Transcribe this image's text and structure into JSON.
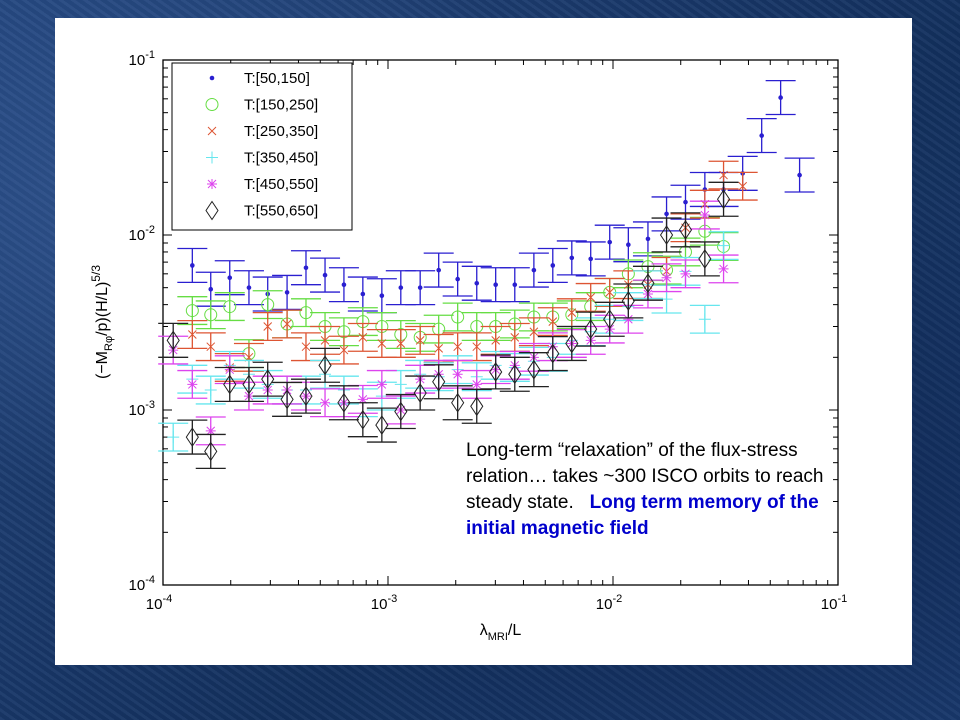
{
  "chart_data": {
    "type": "scatter",
    "xscale": "log",
    "yscale": "log",
    "xlim": [
      0.0001,
      0.1
    ],
    "ylim": [
      0.0001,
      0.1
    ],
    "xlabel": "λMRI/L",
    "xlabel_main": "λ",
    "xlabel_sub": "MRI",
    "xlabel_tail": "/L",
    "ylabel": "(−MRφ/p)(H/L)^5/3",
    "ylabel_parts": {
      "a": "(−M",
      "sub": "Rφ",
      "b": "/p)(H/L)",
      "sup": "5/3"
    },
    "x_ticks": [
      {
        "base": "10",
        "exp": "-4"
      },
      {
        "base": "10",
        "exp": "-3"
      },
      {
        "base": "10",
        "exp": "-2"
      },
      {
        "base": "10",
        "exp": "-1"
      }
    ],
    "y_ticks": [
      {
        "base": "10",
        "exp": "-4"
      },
      {
        "base": "10",
        "exp": "-3"
      },
      {
        "base": "10",
        "exp": "-2"
      },
      {
        "base": "10",
        "exp": "-1"
      }
    ],
    "legend_placement": "top-left",
    "x": [
      0.000111,
      0.000135,
      0.000163,
      0.000198,
      0.000241,
      0.000292,
      0.000356,
      0.000432,
      0.000525,
      0.000637,
      0.000773,
      0.000939,
      0.00114,
      0.00139,
      0.00168,
      0.00204,
      0.00248,
      0.00301,
      0.00366,
      0.00445,
      0.0054,
      0.00656,
      0.00796,
      0.00967,
      0.0117,
      0.0143,
      0.0173,
      0.021,
      0.0256,
      0.031,
      0.0377,
      0.0458,
      0.0556,
      0.0675
    ],
    "series": [
      {
        "name": "T:[50,150]",
        "marker": "dot",
        "color": "#2a1fd0",
        "rel_err": 0.25,
        "values": [
          null,
          0.0067,
          0.0049,
          0.0057,
          0.005,
          0.0046,
          0.0047,
          0.0065,
          0.0059,
          0.0052,
          0.0046,
          0.0045,
          0.005,
          0.005,
          0.0063,
          0.0056,
          0.0053,
          0.0052,
          0.0052,
          0.0063,
          0.0067,
          0.0074,
          0.0073,
          0.0091,
          0.0088,
          0.0095,
          0.0132,
          0.0154,
          0.0182,
          0.0182,
          0.0225,
          0.037,
          0.061,
          0.022
        ]
      },
      {
        "name": "T:[150,250]",
        "marker": "circle",
        "color": "#66dd44",
        "rel_err": 0.2,
        "values": [
          null,
          0.0037,
          0.0035,
          0.0039,
          0.0021,
          0.004,
          0.0031,
          0.0036,
          0.003,
          0.0028,
          0.0032,
          0.003,
          0.0027,
          0.0026,
          0.0029,
          0.0034,
          0.003,
          0.003,
          0.0031,
          0.0034,
          0.0034,
          0.0035,
          0.0039,
          0.0047,
          0.006,
          0.0066,
          0.0063,
          0.008,
          0.0105,
          0.0086,
          null,
          null,
          null,
          null
        ]
      },
      {
        "name": "T:[250,350]",
        "marker": "x",
        "color": "#dd5533",
        "rel_err": 0.2,
        "values": [
          null,
          0.0027,
          0.0023,
          0.00175,
          0.002,
          0.003,
          0.0031,
          0.0023,
          0.0025,
          0.0022,
          0.0026,
          0.0024,
          0.0024,
          0.0025,
          0.00225,
          0.0023,
          0.0023,
          0.0025,
          0.0026,
          0.0028,
          0.0032,
          0.0036,
          0.0044,
          0.0047,
          0.0052,
          0.0052,
          0.0062,
          0.011,
          0.015,
          0.022,
          0.019,
          null,
          null,
          null
        ]
      },
      {
        "name": "T:[350,450]",
        "marker": "plus",
        "color": "#66e6ee",
        "rel_err": 0.2,
        "values": [
          0.0007,
          0.0015,
          0.0013,
          0.0018,
          0.0016,
          0.0014,
          0.0013,
          0.0013,
          0.0016,
          0.0013,
          0.0011,
          0.0012,
          0.0014,
          0.0016,
          0.00155,
          0.0017,
          0.00155,
          0.0018,
          0.00175,
          0.0019,
          0.002,
          0.0025,
          0.0028,
          0.0033,
          0.0039,
          0.0052,
          0.0043,
          0.0062,
          0.0033,
          0.0087,
          null,
          null,
          null,
          null
        ]
      },
      {
        "name": "T:[450,550]",
        "marker": "star",
        "color": "#dd44ee",
        "rel_err": 0.2,
        "values": [
          0.0022,
          0.0014,
          0.00076,
          0.0017,
          0.0012,
          0.0013,
          0.0013,
          0.0012,
          0.0011,
          0.0011,
          0.00115,
          0.0014,
          0.001,
          0.0015,
          0.0016,
          0.0016,
          0.0014,
          0.0017,
          0.0018,
          0.002,
          0.0023,
          0.0024,
          0.0025,
          0.0029,
          0.0033,
          0.0046,
          0.0057,
          0.006,
          0.013,
          0.0064,
          null,
          null,
          null,
          null
        ]
      },
      {
        "name": "T:[550,650]",
        "marker": "diamond",
        "color": "#222222",
        "rel_err": 0.25,
        "values": [
          0.0025,
          0.0007,
          0.00058,
          0.0014,
          0.0014,
          0.0015,
          0.00115,
          0.0012,
          0.0018,
          0.0011,
          0.00088,
          0.00082,
          0.00098,
          0.00125,
          0.00145,
          0.0011,
          0.00105,
          0.00165,
          0.0016,
          0.0017,
          0.0021,
          0.0024,
          0.0029,
          0.0033,
          0.0042,
          0.0053,
          0.01,
          0.0107,
          0.0073,
          0.016,
          null,
          null,
          null,
          null
        ]
      }
    ]
  },
  "annotation": {
    "line1": "Long-term “relaxation” of the flux-stress relation… takes ~300 ISCO orbits to reach steady state.",
    "highlight": "Long term memory of the initial magnetic field"
  }
}
